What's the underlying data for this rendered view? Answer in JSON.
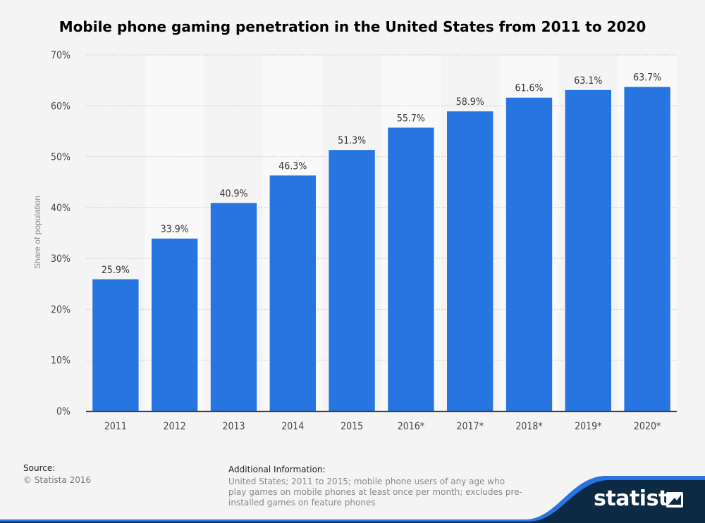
{
  "chart_data": {
    "type": "bar",
    "title": "Mobile phone gaming penetration in the United States from 2011 to 2020",
    "xlabel": "",
    "ylabel": "Share of population",
    "categories": [
      "2011",
      "2012",
      "2013",
      "2014",
      "2015",
      "2016*",
      "2017*",
      "2018*",
      "2019*",
      "2020*"
    ],
    "values": [
      25.9,
      33.9,
      40.9,
      46.3,
      51.3,
      55.7,
      58.9,
      61.6,
      63.1,
      63.7
    ],
    "value_labels": [
      "25.9%",
      "33.9%",
      "40.9%",
      "46.3%",
      "51.3%",
      "55.7%",
      "58.9%",
      "61.6%",
      "63.1%",
      "63.7%"
    ],
    "ylim": [
      0,
      70
    ],
    "yticks": [
      "0%",
      "10%",
      "20%",
      "30%",
      "40%",
      "50%",
      "60%",
      "70%"
    ],
    "grid": true,
    "legend": "none",
    "bar_color": "#2775e0"
  },
  "source": {
    "label": "Source:",
    "text": "© Statista 2016"
  },
  "additional_info": {
    "label": "Additional Information:",
    "text": "United States; 2011 to 2015; mobile phone users of any age who play games on mobile phones at least once per month; excludes pre-installed games on feature phones"
  },
  "brand": {
    "name": "statista",
    "icon": "statista-logo-icon",
    "color": "#0d2a45",
    "accent": "#2775e0"
  }
}
